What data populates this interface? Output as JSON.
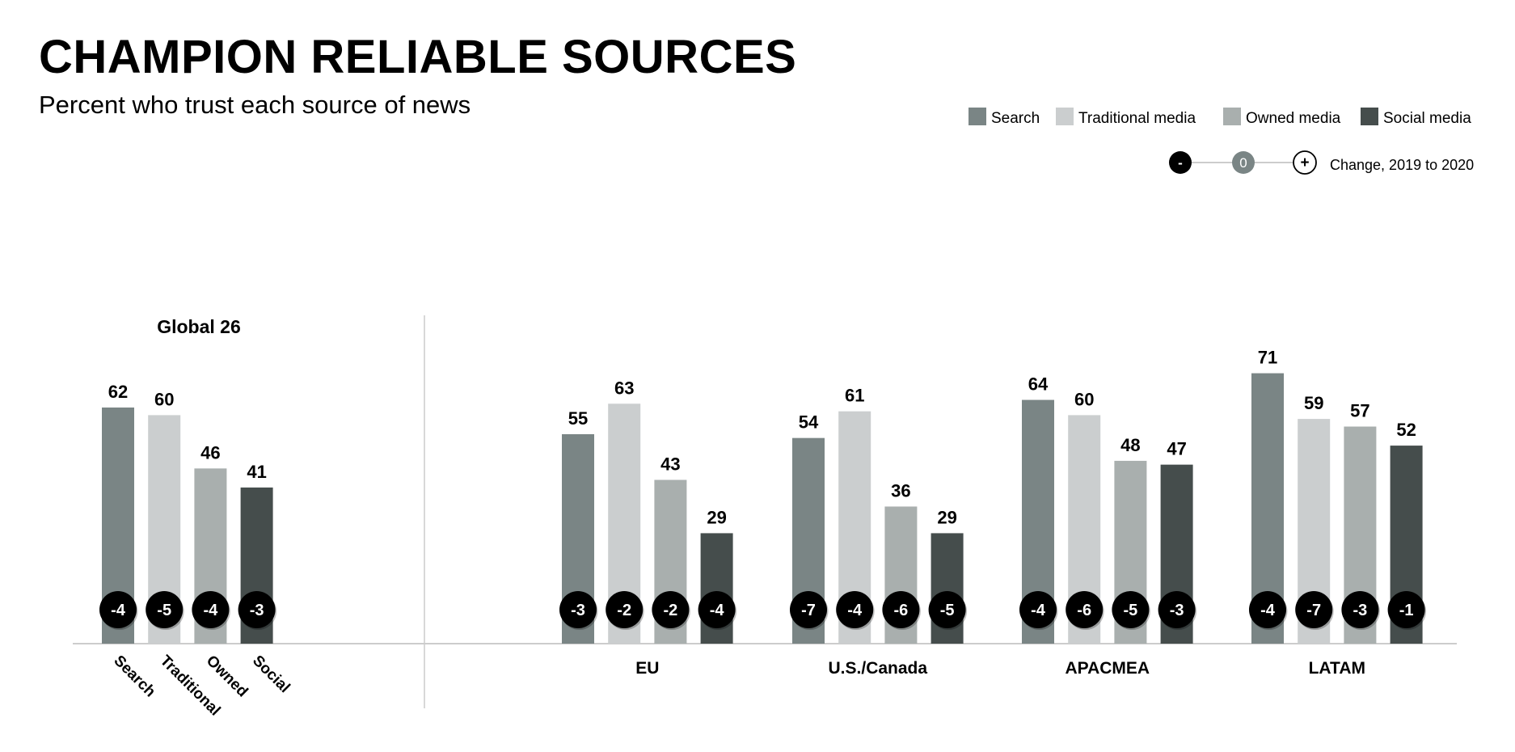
{
  "header": {
    "title": "CHAMPION RELIABLE SOURCES",
    "subtitle": "Percent who trust each source of news"
  },
  "change_legend": {
    "negative_symbol": "-",
    "zero_symbol": "0",
    "positive_symbol": "+",
    "label": "Change, 2019 to 2020"
  },
  "colors": {
    "search": "#7a8585",
    "traditional": "#cbcecf",
    "owned": "#a9afae",
    "social": "#454d4c",
    "badge": "#000000",
    "zero_badge": "#7a8585",
    "axis": "#cccccc"
  },
  "chart_data": {
    "type": "bar",
    "title": "CHAMPION RELIABLE SOURCES",
    "subtitle": "Percent who trust each source of news",
    "series_names": [
      "Search",
      "Traditional media",
      "Owned media",
      "Social media"
    ],
    "ylim": [
      0,
      100
    ],
    "grid": false,
    "legend": "top-right",
    "global": {
      "label": "Global 26",
      "categories": [
        "Search",
        "Traditional",
        "Owned",
        "Social"
      ],
      "values": [
        62,
        60,
        46,
        41
      ],
      "changes": [
        "-4",
        "-5",
        "-4",
        "-3"
      ]
    },
    "regions": [
      {
        "name": "EU",
        "values": [
          55,
          63,
          43,
          29
        ],
        "changes": [
          "-3",
          "-2",
          "-2",
          "-4"
        ]
      },
      {
        "name": "U.S./Canada",
        "values": [
          54,
          61,
          36,
          29
        ],
        "changes": [
          "-7",
          "-4",
          "-6",
          "-5"
        ]
      },
      {
        "name": "APACMEA",
        "values": [
          64,
          60,
          48,
          47
        ],
        "changes": [
          "-4",
          "-6",
          "-5",
          "-3"
        ]
      },
      {
        "name": "LATAM",
        "values": [
          71,
          59,
          57,
          52
        ],
        "changes": [
          "-4",
          "-7",
          "-3",
          "-1"
        ]
      }
    ]
  }
}
